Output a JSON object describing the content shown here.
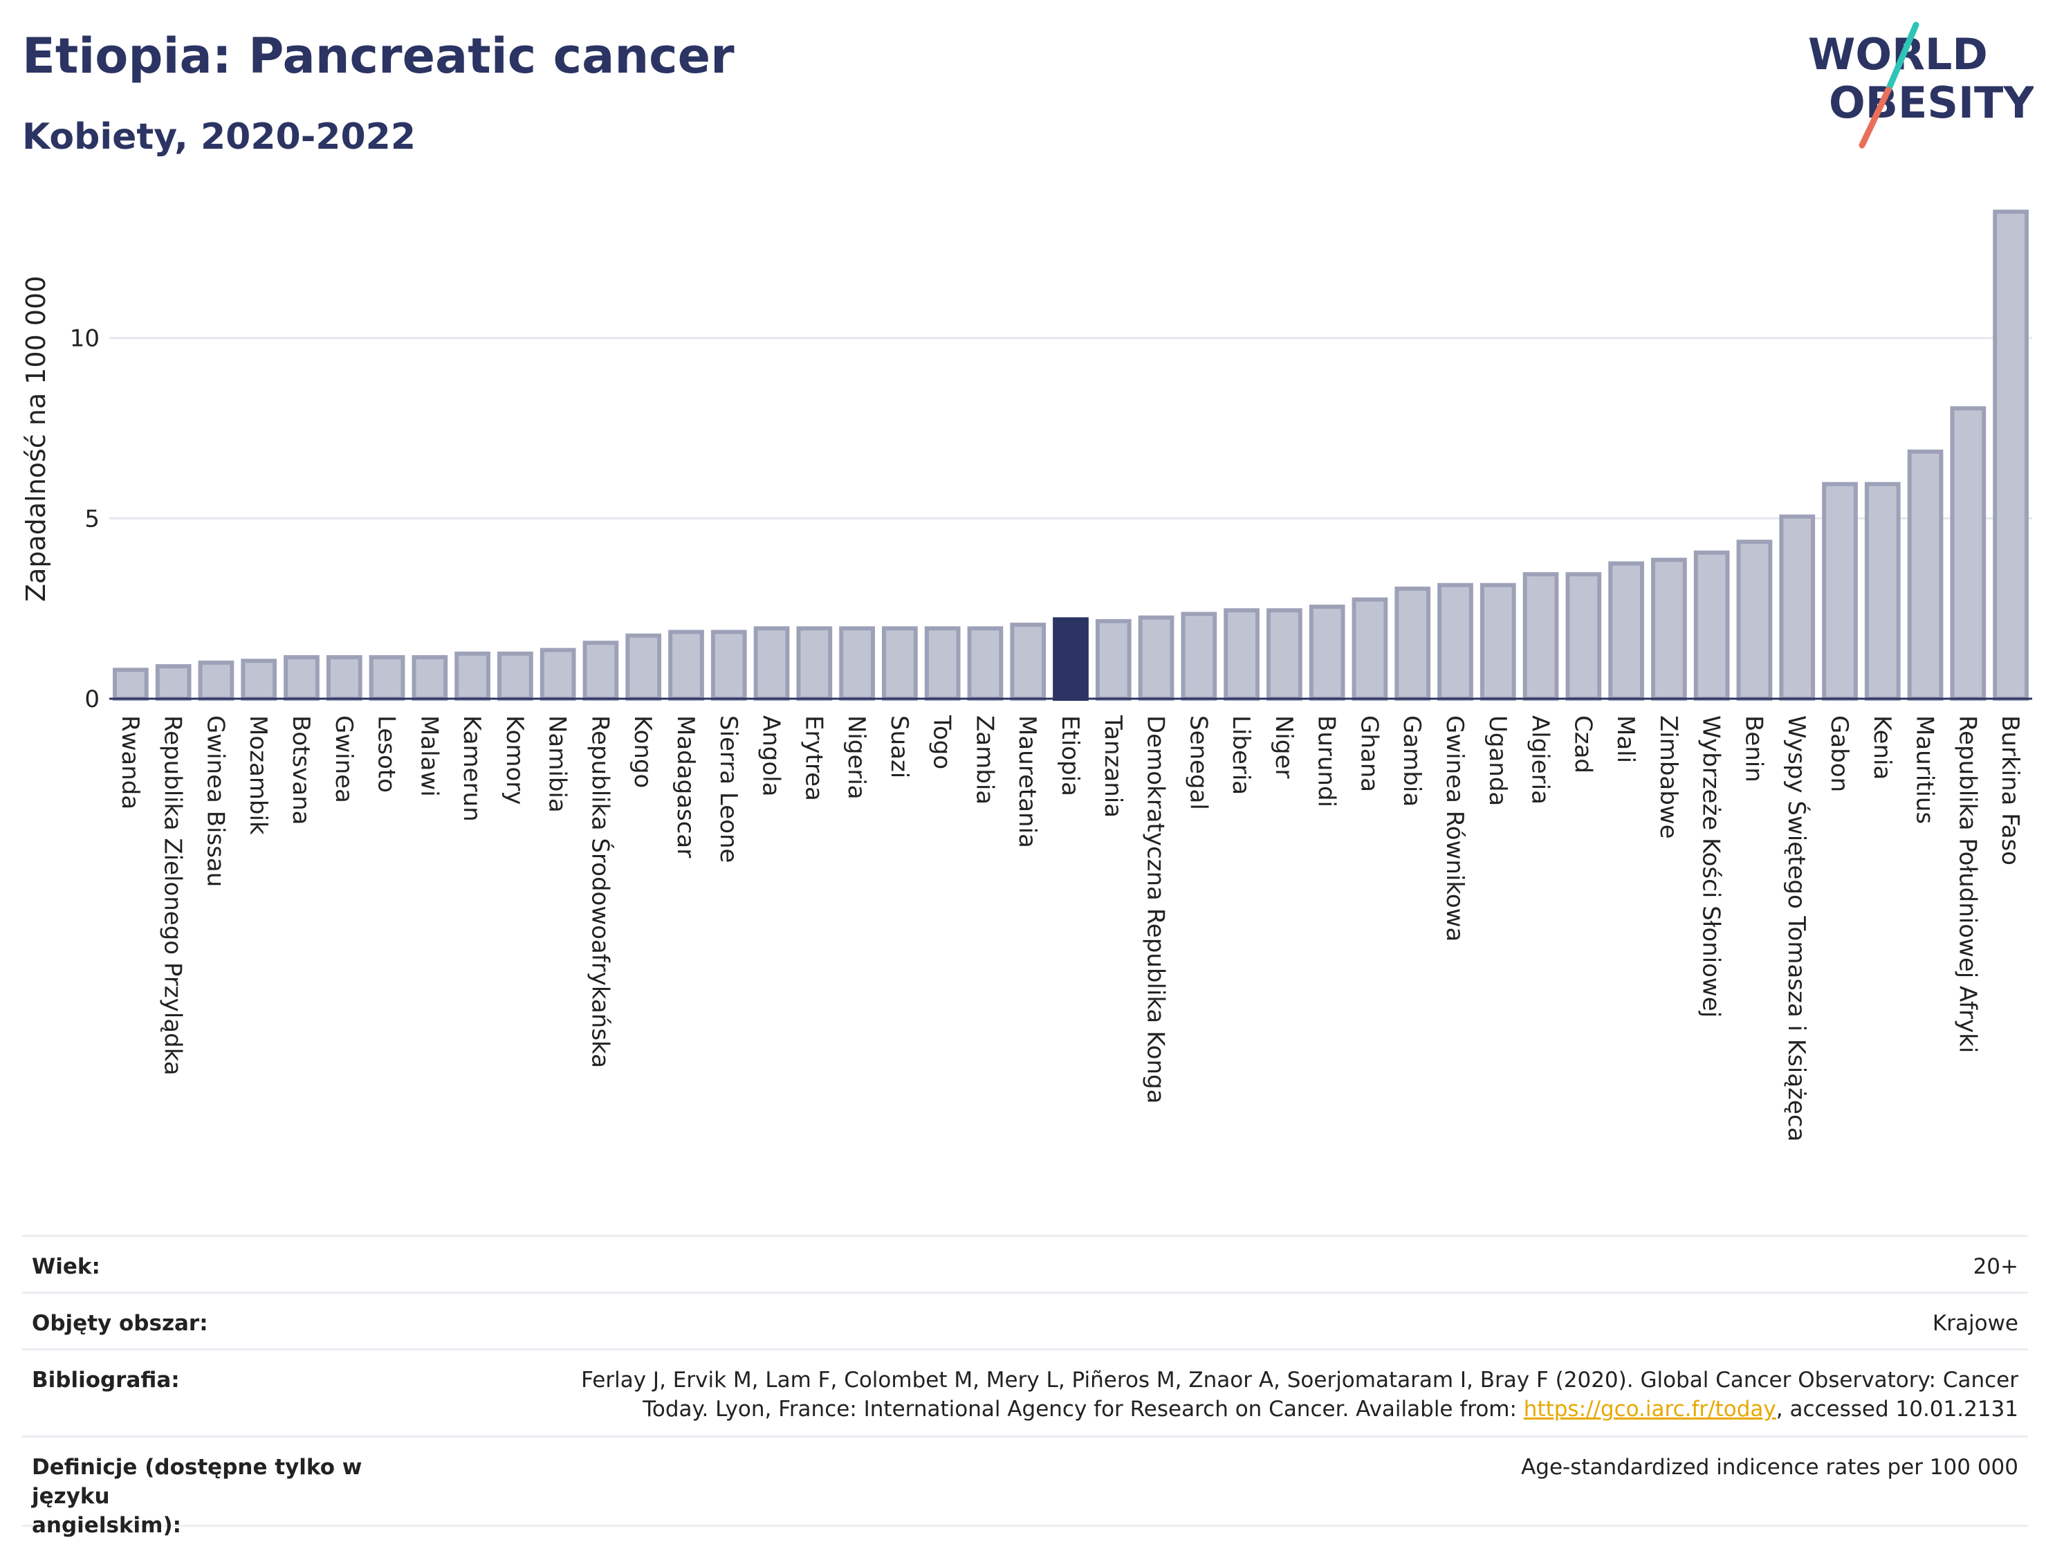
{
  "header": {
    "title": "Etiopia: Pancreatic cancer",
    "subtitle": "Kobiety, 2020-2022"
  },
  "logo": {
    "line1": "WORLD",
    "line2": "OBESITY",
    "accent_teal": "#2ec4b6",
    "accent_coral": "#e8705a"
  },
  "colors": {
    "bar": "#c0c4d2",
    "bar_border": "#9da1b8",
    "highlight": "#2b3462",
    "grid": "#e6e7ee"
  },
  "chart_data": {
    "type": "bar",
    "title": "",
    "ylabel": "Zapadalność na 100 000",
    "xlabel": "",
    "ylim": [
      0,
      14
    ],
    "yticks": [
      0,
      5,
      10
    ],
    "highlight": "Etiopia",
    "categories": [
      "Rwanda",
      "Republika Zielonego Przylądka",
      "Gwinea Bissau",
      "Mozambik",
      "Botsvana",
      "Gwinea",
      "Lesoto",
      "Malawi",
      "Kamerun",
      "Komory",
      "Namibia",
      "Republika Środowoafrykańska",
      "Kongo",
      "Madagascar",
      "Sierra Leone",
      "Angola",
      "Erytrea",
      "Nigeria",
      "Suazi",
      "Togo",
      "Zambia",
      "Mauretania",
      "Etiopia",
      "Tanzania",
      "Demokratyczna Republika Konga",
      "Senegal",
      "Liberia",
      "Niger",
      "Burundi",
      "Ghana",
      "Gambia",
      "Gwinea Równikowa",
      "Uganda",
      "Algieria",
      "Czad",
      "Mali",
      "Zimbabwe",
      "Wybrzeże Kości Słoniowej",
      "Benin",
      "Wyspy Świętego Tomasza i Książęca",
      "Gabon",
      "Kenia",
      "Mauritius",
      "Republika Południowej Afryki",
      "Burkina Faso"
    ],
    "values": [
      0.8,
      0.9,
      1.0,
      1.05,
      1.15,
      1.15,
      1.15,
      1.15,
      1.25,
      1.25,
      1.35,
      1.55,
      1.75,
      1.85,
      1.85,
      1.95,
      1.95,
      1.95,
      1.95,
      1.95,
      1.95,
      2.05,
      2.2,
      2.15,
      2.25,
      2.35,
      2.45,
      2.45,
      2.55,
      2.75,
      3.05,
      3.15,
      3.15,
      3.45,
      3.45,
      3.75,
      3.85,
      4.05,
      4.35,
      5.05,
      5.95,
      5.95,
      6.85,
      8.05,
      13.5
    ]
  },
  "info": {
    "age_label": "Wiek:",
    "age_value": "20+",
    "area_label": "Objęty obszar:",
    "area_value": "Krajowe",
    "bib_label": "Bibliografia:",
    "bib_line1": "Ferlay J, Ervik M, Lam F, Colombet M, Mery L, Piñeros M, Znaor A, Soerjomataram I, Bray F (2020). Global Cancer Observatory: Cancer",
    "bib_line2_pre": "Today. Lyon, France: International Agency for Research on Cancer. Available from: ",
    "bib_link": "https://gco.iarc.fr/today",
    "bib_line2_post": ", accessed 10.01.2131",
    "def_label_1": "Definicje (dostępne tylko w języku",
    "def_label_2": "angielskim):",
    "def_value": "Age-standardized indicence rates per 100 000"
  }
}
